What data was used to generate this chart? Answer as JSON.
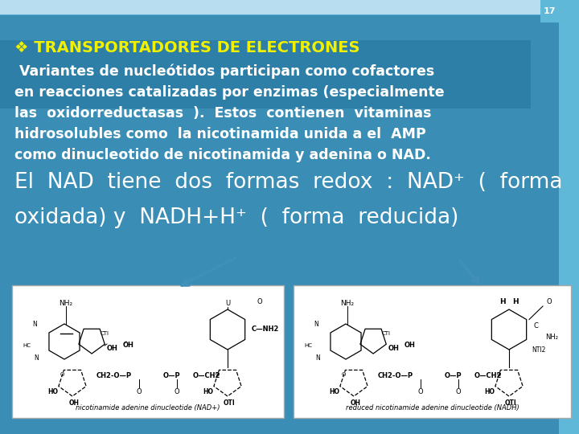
{
  "bg_color": "#3a8db5",
  "bg_color2": "#2e7fa8",
  "top_strip_color": "#b8ddf0",
  "slide_number": "17",
  "title_bullet": "❖ TRANSPORTADORES DE ELECTRONES",
  "title_color": "#f0f000",
  "body_text_color": "#ffffff",
  "body_lines": [
    " Variantes de nucleótidos participan como cofactores",
    "en reacciones catalizadas por enzimas (especialmente",
    "las  oxidorreductasas  ).  Estos  contienen  vitaminas",
    "hidrosolubles como  la nicotinamida unida a el  AMP",
    "como dinucleotido de nicotinamida y adenina o NAD."
  ],
  "large_text_line1": "El  NAD  tiene  dos  formas  redox  :  NAD⁺  (  forma",
  "large_text_line2": "oxidada) y  NADH+H⁺  (  forma  reducida)",
  "img1_label": "nicotinamide adenine dinucleotide (NAD+)",
  "img2_label": "reduced nicotinamide adenine dinucleotide (NADH)",
  "box_bg": "#ffffff",
  "font_body_size": 12.5,
  "font_large_size": 19,
  "font_title_size": 14
}
